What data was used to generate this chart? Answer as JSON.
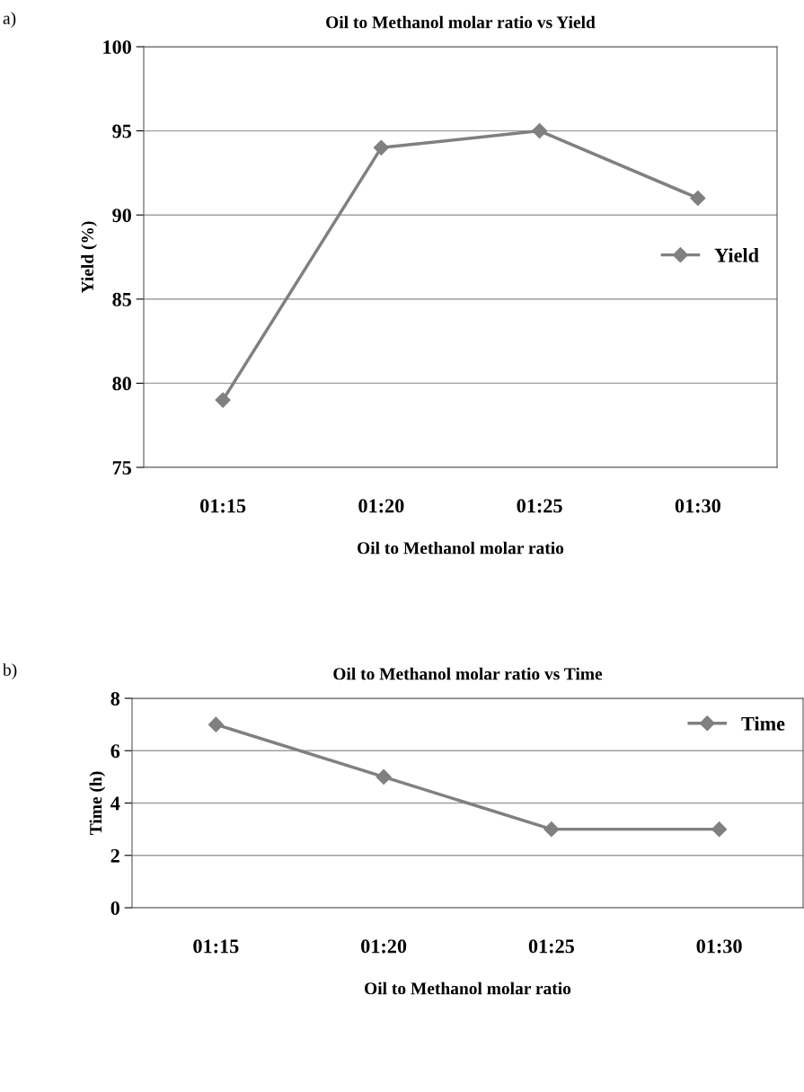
{
  "chart_data": [
    {
      "type": "line",
      "title": "Oil to Methanol molar ratio vs Yield",
      "xlabel": "Oil to Methanol molar ratio",
      "ylabel": "Yield (%)",
      "annotations": [
        "a)"
      ],
      "categories": [
        "01:15",
        "01:20",
        "01:25",
        "01:30"
      ],
      "series": [
        {
          "name": "Yield",
          "color": "#808080",
          "values": [
            79,
            94,
            95,
            91
          ]
        }
      ],
      "ylim": [
        75,
        100
      ],
      "yticks": [
        75,
        80,
        85,
        90,
        95,
        100
      ],
      "grid": "y",
      "legend": "right",
      "marker": "diamond",
      "line_style": "solid"
    },
    {
      "type": "line",
      "title": "Oil to Methanol molar ratio vs Time",
      "xlabel": "Oil to Methanol molar ratio",
      "ylabel": "Time (h)",
      "annotations": [
        "b)"
      ],
      "categories": [
        "01:15",
        "01:20",
        "01:25",
        "01:30"
      ],
      "series": [
        {
          "name": "Time",
          "color": "#808080",
          "values": [
            7,
            5,
            3,
            3
          ]
        }
      ],
      "ylim": [
        0,
        8
      ],
      "yticks": [
        0,
        2,
        4,
        6,
        8
      ],
      "grid": "y",
      "legend": "top right",
      "marker": "diamond",
      "line_style": "solid"
    }
  ]
}
